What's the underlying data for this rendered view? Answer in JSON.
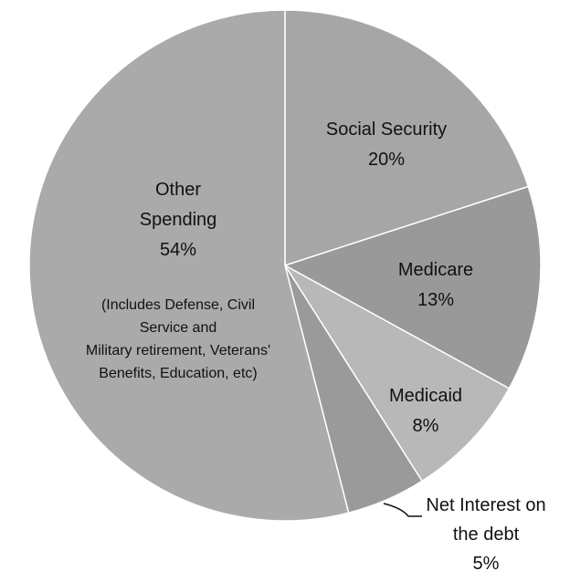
{
  "chart_data": {
    "type": "pie",
    "title": "",
    "slices": [
      {
        "name": "Social Security",
        "value_label": "20%",
        "value": 20,
        "color": "#a6a6a6"
      },
      {
        "name": "Medicare",
        "value_label": "13%",
        "value": 13,
        "color": "#999999"
      },
      {
        "name": "Medicaid",
        "value_label": "8%",
        "value": 8,
        "color": "#b8b8b8"
      },
      {
        "name_lines": [
          "Net Interest on",
          "the debt"
        ],
        "name": "Net Interest on the debt",
        "value_label": "5%",
        "value": 5,
        "color": "#9a9a9a"
      },
      {
        "name_lines": [
          "Other",
          "Spending"
        ],
        "name": "Other Spending",
        "value_label": "54%",
        "value": 54,
        "color": "#aaaaaa",
        "note_lines": [
          "(Includes Defense, Civil",
          "Service and",
          "Military retirement, Veterans'",
          "Benefits, Education, etc)"
        ]
      }
    ],
    "start_angle": "12 o'clock",
    "direction": "clockwise",
    "legend": "none",
    "background": "#ffffff",
    "edge_color": "#ffffff"
  }
}
